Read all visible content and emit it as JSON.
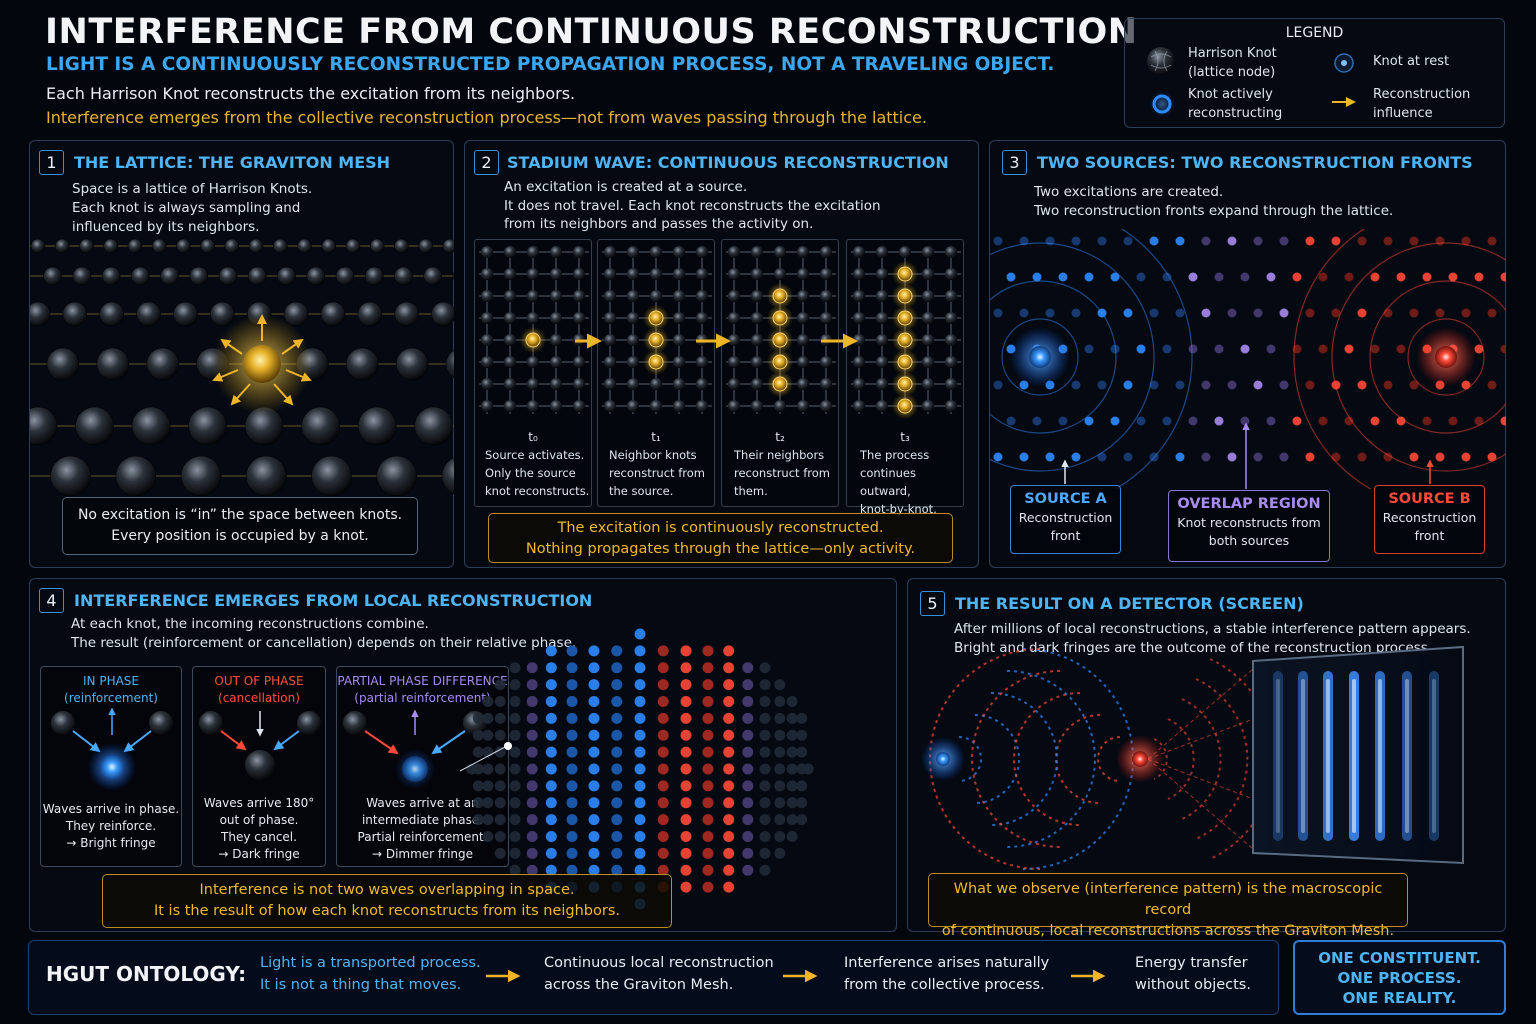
{
  "header": {
    "title": "INTERFERENCE FROM CONTINUOUS RECONSTRUCTION",
    "subtitle": "LIGHT IS A CONTINUOUSLY RECONSTRUCTED PROPAGATION PROCESS, NOT A TRAVELING OBJECT.",
    "line1": "Each Harrison Knot reconstructs the excitation from its neighbors.",
    "line2": "Interference emerges from the collective reconstruction process—not from waves passing through the lattice."
  },
  "legend": {
    "title": "LEGEND",
    "items": [
      {
        "icon": "lattice-knot-icon",
        "label": "Harrison Knot\n(lattice node)"
      },
      {
        "icon": "knot-at-rest-icon",
        "label": "Knot at rest"
      },
      {
        "icon": "active-ring-icon",
        "label": "Knot actively\nreconstructing"
      },
      {
        "icon": "influence-arrow-icon",
        "label": "Reconstruction\ninfluence"
      }
    ]
  },
  "panel1": {
    "num": "1",
    "title": "THE LATTICE: THE GRAVITON MESH",
    "text": "Space is a lattice of Harrison Knots.\nEach knot is always sampling and\ninfluenced by its neighbors.",
    "note": "No excitation is “in” the space between knots.\nEvery position is occupied by a knot."
  },
  "panel2": {
    "num": "2",
    "title": "STADIUM WAVE: CONTINUOUS RECONSTRUCTION",
    "text": "An excitation is created at a source.\nIt does not travel. Each knot reconstructs the excitation\nfrom its neighbors and passes the activity on.",
    "steps": [
      {
        "label": "t₀",
        "text": "Source activates.\nOnly the source\nknot reconstructs."
      },
      {
        "label": "t₁",
        "text": "Neighbor knots\nreconstruct from\nthe source."
      },
      {
        "label": "t₂",
        "text": "Their neighbors\nreconstruct from\nthem."
      },
      {
        "label": "t₃",
        "text": "The process\ncontinues outward,\nknot-by-knot."
      }
    ],
    "note": "The excitation is continuously reconstructed.\nNothing propagates through the lattice—only activity."
  },
  "panel3": {
    "num": "3",
    "title": "TWO SOURCES: TWO RECONSTRUCTION FRONTS",
    "text": "Two excitations are created.\nTwo reconstruction fronts expand through the lattice.",
    "source_a": {
      "title": "SOURCE A",
      "desc": "Reconstruction\nfront"
    },
    "overlap": {
      "title": "OVERLAP REGION",
      "desc": "Knot reconstructs from\nboth sources"
    },
    "source_b": {
      "title": "SOURCE B",
      "desc": "Reconstruction\nfront"
    }
  },
  "panel4": {
    "num": "4",
    "title": "INTERFERENCE EMERGES FROM LOCAL RECONSTRUCTION",
    "text": "At each knot, the incoming reconstructions combine.\nThe result (reinforcement or cancellation) depends on their relative phase.",
    "cases": [
      {
        "title": "IN PHASE\n(reinforcement)",
        "desc": "Waves arrive in phase.\nThey reinforce.\n→ Bright fringe"
      },
      {
        "title": "OUT OF PHASE\n(cancellation)",
        "desc": "Waves arrive 180°\nout of phase.\nThey cancel.\n→ Dark fringe"
      },
      {
        "title": "PARTIAL PHASE DIFFERENCE\n(partial reinforcement)",
        "desc": "Waves arrive at an\nintermediate phase.\nPartial reinforcement.\n→ Dimmer fringe"
      }
    ],
    "note": "Interference is not two waves overlapping in space.\nIt is the result of how each knot reconstructs from its neighbors."
  },
  "panel5": {
    "num": "5",
    "title": "THE RESULT ON A DETECTOR (SCREEN)",
    "text": "After millions of local reconstructions, a stable interference pattern appears.\nBright and dark fringes are the outcome of the reconstruction process.",
    "note": "What we observe (interference pattern) is the macroscopic record\nof continuous, local reconstructions across the Graviton Mesh."
  },
  "footer": {
    "label": "HGUT ONTOLOGY:",
    "steps": [
      "Light is a transported process.\nIt is not a thing that moves.",
      "Continuous local reconstruction\nacross the Graviton Mesh.",
      "Interference arises naturally\nfrom the collective process.",
      "Energy transfer\nwithout objects."
    ],
    "motto": "ONE CONSTITUENT.\nONE PROCESS.\nONE REALITY."
  },
  "colors": {
    "blue_accent": "#3aa7f0",
    "gold_accent": "#e8b531",
    "source_a_blue": "#2f8cff",
    "source_b_red": "#ff3b30",
    "overlap_purple": "#a88cf0",
    "panel_border": "#2c3e57"
  }
}
